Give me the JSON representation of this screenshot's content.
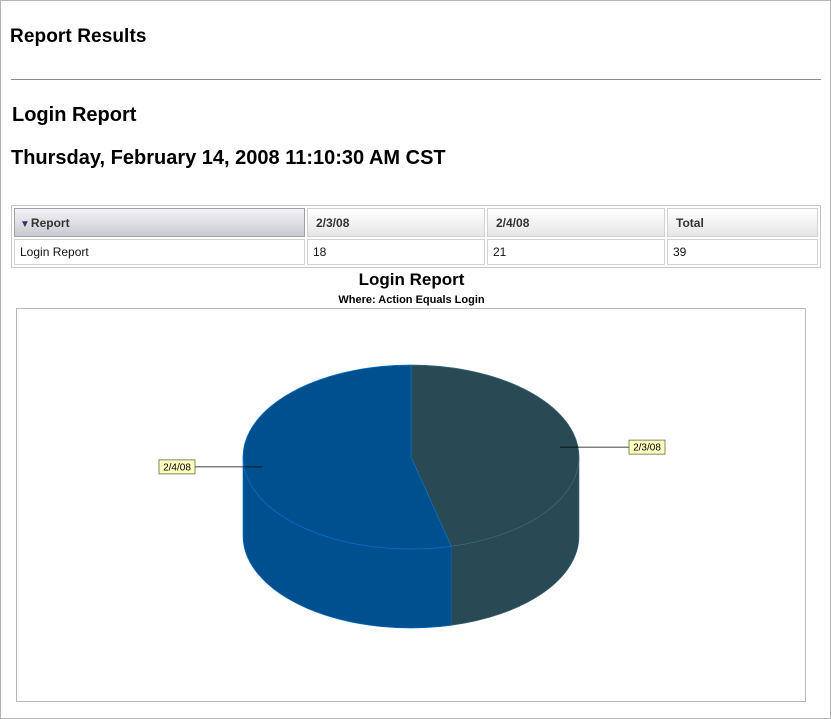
{
  "page": {
    "title": "Report Results"
  },
  "report": {
    "name": "Login Report",
    "timestamp": "Thursday, February 14, 2008 11:10:30 AM CST"
  },
  "table": {
    "sort_icon": "▼",
    "columns": [
      "Report",
      "2/3/08",
      "2/4/08",
      "Total"
    ],
    "rows": [
      [
        "Login Report",
        "18",
        "21",
        "39"
      ]
    ]
  },
  "chart_data": {
    "type": "pie",
    "title": "Login Report",
    "subtitle": "Where: Action Equals Login",
    "style": "3d",
    "slices": [
      {
        "label": "2/3/08",
        "value": 18,
        "color": "#294a54"
      },
      {
        "label": "2/4/08",
        "value": 21,
        "color": "#00508f"
      }
    ]
  }
}
